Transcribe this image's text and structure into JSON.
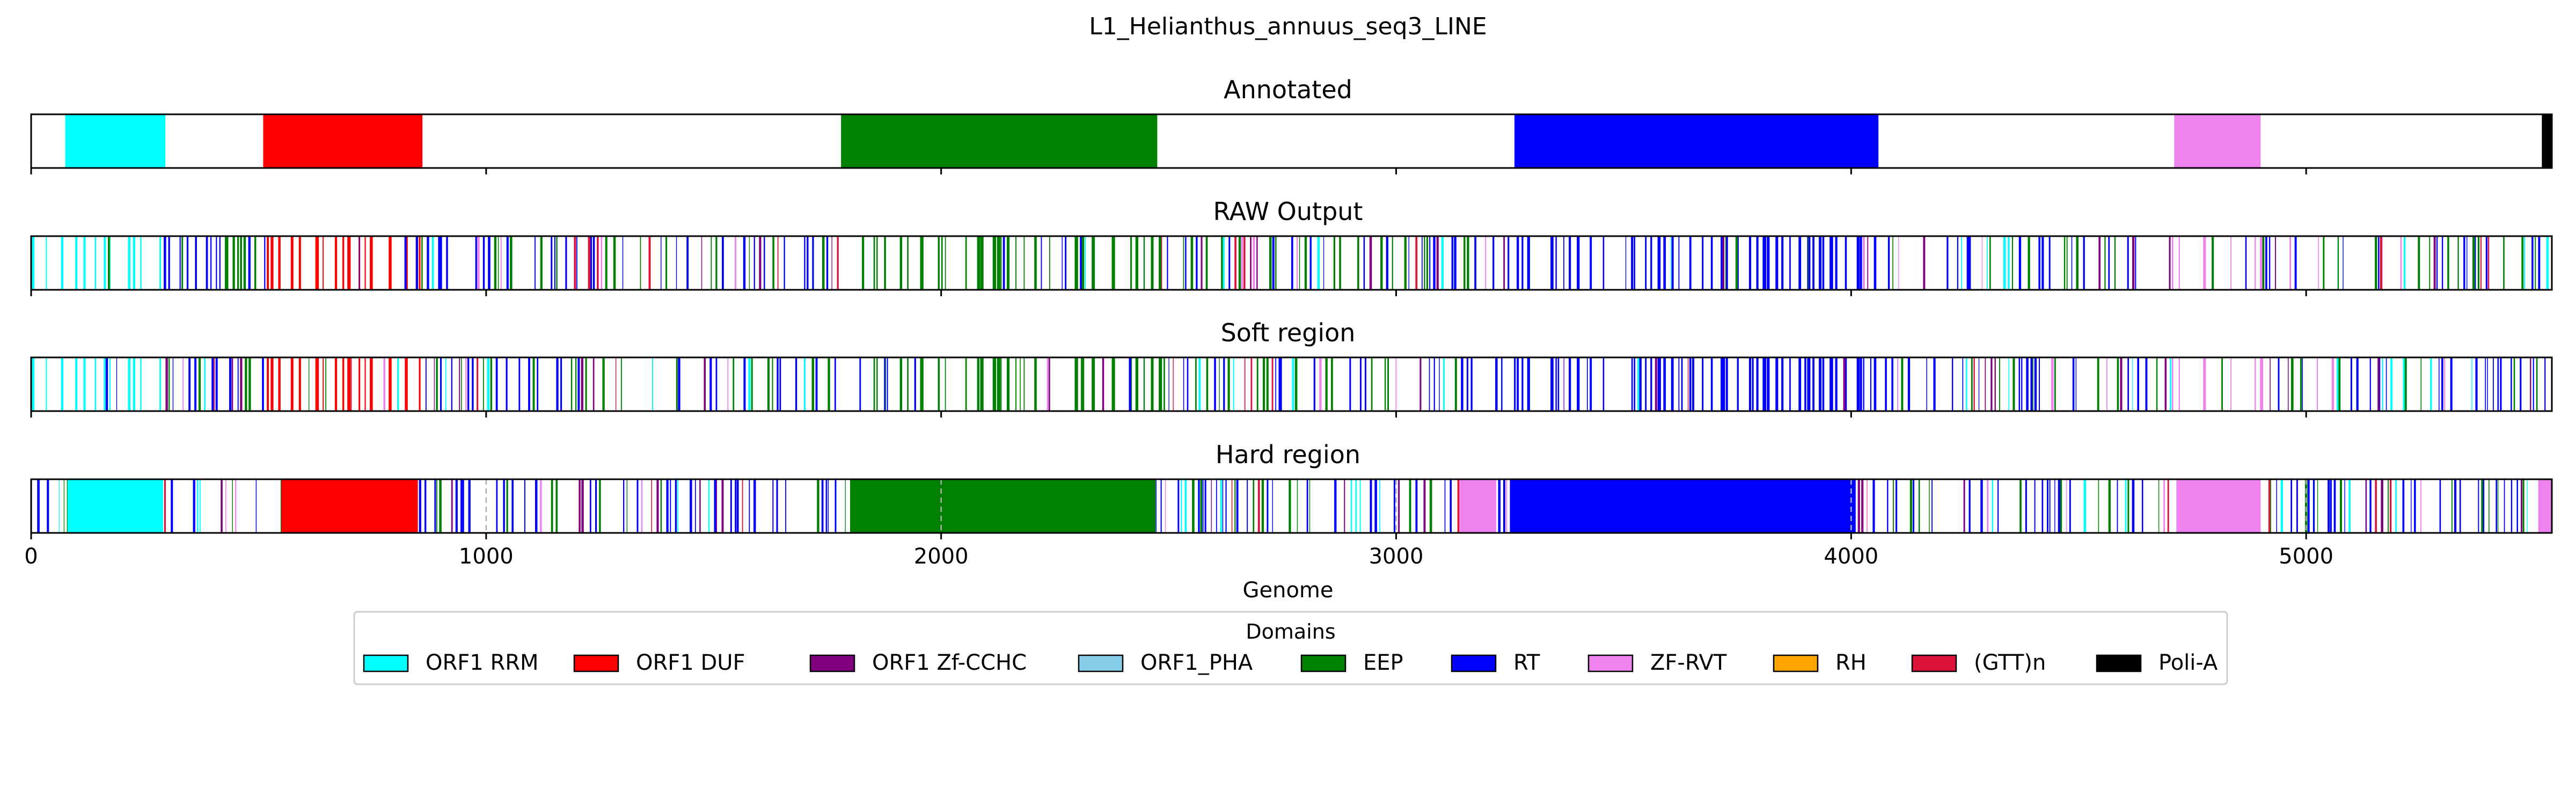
{
  "chart_data": {
    "type": "genome-track",
    "title": "L1_Helianthus_annuus_seq3_LINE",
    "xlabel": "Genome",
    "xlim": [
      0,
      5540
    ],
    "xticks": [
      0,
      1000,
      2000,
      3000,
      4000,
      5000
    ],
    "tick_labels": [
      "0",
      "1000",
      "2000",
      "3000",
      "4000",
      "5000"
    ],
    "domain_colors": {
      "ORF1 RRM": "#00ffff",
      "ORF1 DUF": "#ff0000",
      "ORF1 Zf-CCHC": "#800080",
      "ORF1_PHA": "#87ceeb",
      "EEP": "#008000",
      "RT": "#0000ff",
      "ZF-RVT": "#ee82ee",
      "RH": "#ffa500",
      "(GTT)n": "#dc143c",
      "Poli-A": "#000000"
    },
    "legend": {
      "title": "Domains",
      "placement": "below plot, center",
      "entries": [
        {
          "label": "ORF1 RRM",
          "color": "#00ffff"
        },
        {
          "label": "ORF1 DUF",
          "color": "#ff0000"
        },
        {
          "label": "ORF1 Zf-CCHC",
          "color": "#800080"
        },
        {
          "label": "ORF1_PHA",
          "color": "#87ceeb"
        },
        {
          "label": "EEP",
          "color": "#008000"
        },
        {
          "label": "RT",
          "color": "#0000ff"
        },
        {
          "label": "ZF-RVT",
          "color": "#ee82ee"
        },
        {
          "label": "RH",
          "color": "#ffa500"
        },
        {
          "label": "(GTT)n",
          "color": "#dc143c"
        },
        {
          "label": "Poli-A",
          "color": "#000000"
        }
      ]
    },
    "panels": [
      {
        "title": "Annotated",
        "grid": false,
        "segments": [
          {
            "domain": "ORF1 RRM",
            "start": 75,
            "end": 295
          },
          {
            "domain": "ORF1 DUF",
            "start": 510,
            "end": 860
          },
          {
            "domain": "EEP",
            "start": 1780,
            "end": 2475
          },
          {
            "domain": "RT",
            "start": 3260,
            "end": 4060
          },
          {
            "domain": "ZF-RVT",
            "start": 4710,
            "end": 4900
          },
          {
            "domain": "Poli-A",
            "start": 5518,
            "end": 5540
          }
        ]
      },
      {
        "title": "RAW Output",
        "grid": false,
        "segments": [
          {
            "domain": "ORF1 RRM",
            "start": 0,
            "end": 290
          },
          {
            "domain": "ORF1 DUF",
            "start": 505,
            "end": 860
          },
          {
            "domain": "EEP",
            "start": 1775,
            "end": 2480
          },
          {
            "domain": "RT",
            "start": 3265,
            "end": 4060
          },
          {
            "domain": "ZF-RVT",
            "start": 4705,
            "end": 4900
          }
        ]
      },
      {
        "title": "Soft region",
        "grid": false,
        "segments": [
          {
            "domain": "ORF1 RRM",
            "start": 0,
            "end": 290
          },
          {
            "domain": "ORF1 DUF",
            "start": 505,
            "end": 860
          },
          {
            "domain": "EEP",
            "start": 1775,
            "end": 2480
          },
          {
            "domain": "RT",
            "start": 3265,
            "end": 4060
          },
          {
            "domain": "ZF-RVT",
            "start": 4705,
            "end": 4900
          }
        ]
      },
      {
        "title": "Hard region",
        "grid": true,
        "segments": [
          {
            "domain": "ORF1 RRM",
            "start": 80,
            "end": 290
          },
          {
            "domain": "ORF1 DUF",
            "start": 550,
            "end": 850
          },
          {
            "domain": "EEP",
            "start": 1800,
            "end": 2470
          },
          {
            "domain": "ZF-RVT",
            "start": 3140,
            "end": 3220
          },
          {
            "domain": "RT",
            "start": 3250,
            "end": 4010
          },
          {
            "domain": "ZF-RVT",
            "start": 4715,
            "end": 4900
          },
          {
            "domain": "ZF-RVT",
            "start": 5510,
            "end": 5540
          }
        ]
      }
    ]
  }
}
